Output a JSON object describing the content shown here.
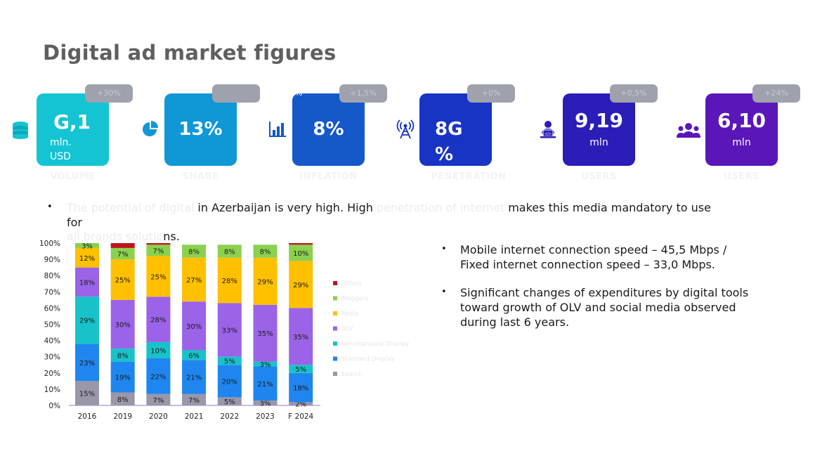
{
  "page": {
    "title": "Digital ad market figures"
  },
  "kpis": [
    {
      "icon": "coins-icon",
      "value": "G,1",
      "unit_line1": "mln.",
      "unit_line2": "USD",
      "badge": "+30%",
      "caption": "VOLUME",
      "color": "#14c4d3"
    },
    {
      "icon": "pie-chart-icon",
      "value": "13%",
      "unit_line1": "",
      "unit_line2": "",
      "badge": "",
      "caption": "SHARE",
      "color": "#0f97d6"
    },
    {
      "icon": "bar-chart-icon",
      "value": "8%",
      "unit_line1": "",
      "unit_line2": "",
      "badge": "+1,5%",
      "caption": "INFLATION",
      "color": "#1458c9",
      "corner_mark": "%"
    },
    {
      "icon": "antenna-icon",
      "value": "8G",
      "unit_line1": "%",
      "unit_line2": "",
      "badge": "+0%",
      "caption": "PENETRATION",
      "color": "#1734c4"
    },
    {
      "icon": "user-laptop-icon",
      "value": "9,19",
      "unit_line1": "mln",
      "unit_line2": "",
      "badge": "+0,5%",
      "caption": "USERS",
      "color": "#2a1db8"
    },
    {
      "icon": "users-group-icon",
      "value": "6,10",
      "unit_line1": "mln",
      "unit_line2": "",
      "badge": "+24%",
      "caption": "USERS",
      "color": "#5a16b8"
    }
  ],
  "intro": {
    "faded_1": "The potential of digital",
    "text_1": " in Azerbaijan is very high. High ",
    "faded_2": "penetration of internet",
    "text_2": " makes this media mandatory to use",
    "line2": "for",
    "faded_3": "all brands solutio",
    "text_3": "ns."
  },
  "bullets": [
    {
      "line1": "Mobile internet connection speed – 45,5 Mbps /",
      "line2": "Fixed internet connection speed – 33,0 Mbps.",
      "line3": ""
    },
    {
      "line1": "Significant changes of expenditures by digital tools",
      "line2": "toward growth of OLV and social media observed",
      "line3": "during last 6 years."
    }
  ],
  "chart_data": {
    "type": "bar",
    "stacked": true,
    "categories": [
      "2016",
      "2019",
      "2020",
      "2021",
      "2022",
      "2023",
      "F 2024"
    ],
    "y_ticks": [
      "0%",
      "10%",
      "20%",
      "30%",
      "40%",
      "50%",
      "60%",
      "70%",
      "80%",
      "90%",
      "100%"
    ],
    "ylim": [
      0,
      100
    ],
    "series": [
      {
        "name": "Search",
        "color": "#9a97a8",
        "values": [
          15,
          8,
          7,
          7,
          5,
          3,
          2
        ],
        "labels": [
          "15%",
          "8%",
          "7%",
          "7%",
          "5%",
          "3%",
          "2%"
        ]
      },
      {
        "name": "Standard Display",
        "color": "#1f86f0",
        "values": [
          23,
          19,
          22,
          21,
          20,
          21,
          18
        ],
        "labels": [
          "23%",
          "19%",
          "22%",
          "21%",
          "20%",
          "21%",
          "18%"
        ]
      },
      {
        "name": "Non-standard Display",
        "color": "#17c3c9",
        "values": [
          29,
          8,
          10,
          6,
          5,
          3,
          5
        ],
        "labels": [
          "29%",
          "8%",
          "10%",
          "6%",
          "5%",
          "3%",
          "5%"
        ]
      },
      {
        "name": "OLV",
        "color": "#9b63e8",
        "values": [
          18,
          30,
          28,
          30,
          33,
          35,
          35
        ],
        "labels": [
          "18%",
          "30%",
          "28%",
          "30%",
          "33%",
          "35%",
          "35%"
        ]
      },
      {
        "name": "Radio",
        "color": "#ffc000",
        "values": [
          12,
          25,
          25,
          27,
          28,
          29,
          29
        ],
        "labels": [
          "12%",
          "25%",
          "25%",
          "27%",
          "28%",
          "29%",
          "29%"
        ]
      },
      {
        "name": "Bloggers",
        "color": "#8bd14f",
        "values": [
          3,
          7,
          7,
          8,
          8,
          8,
          10
        ],
        "labels": [
          "3%",
          "7%",
          "7%",
          "8%",
          "8%",
          "8%",
          "10%"
        ]
      },
      {
        "name": "Others",
        "color": "#c0141e",
        "values": [
          0,
          3,
          1,
          0,
          0,
          0,
          1
        ],
        "labels": [
          "",
          "",
          "",
          "",
          "",
          "",
          ""
        ]
      }
    ],
    "legend_position": "right",
    "grid": false
  }
}
